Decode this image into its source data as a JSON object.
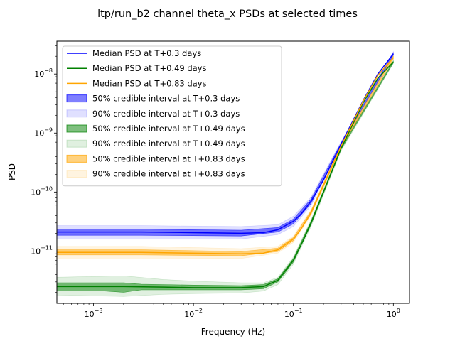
{
  "chart_data": {
    "type": "line",
    "title": "ltp/run_b2 channel theta_x PSDs at selected times",
    "xlabel": "Frequency (Hz)",
    "ylabel": "PSD",
    "xscale": "log",
    "yscale": "log",
    "xlim": [
      0.00043,
      1.45
    ],
    "ylim": [
      1.3e-12,
      3.6e-08
    ],
    "x_ticks": [
      {
        "value": 0.001,
        "base": "10",
        "exp": "−3"
      },
      {
        "value": 0.01,
        "base": "10",
        "exp": "−2"
      },
      {
        "value": 0.1,
        "base": "10",
        "exp": "−1"
      },
      {
        "value": 1,
        "base": "10",
        "exp": "0"
      }
    ],
    "y_ticks": [
      {
        "value": 1e-11,
        "base": "10",
        "exp": "−11"
      },
      {
        "value": 1e-10,
        "base": "10",
        "exp": "−10"
      },
      {
        "value": 1e-09,
        "base": "10",
        "exp": "−9"
      },
      {
        "value": 1e-08,
        "base": "10",
        "exp": "−8"
      }
    ],
    "grid": false,
    "legend_position": "upper-left",
    "series": [
      {
        "name": "Median PSD at T+0.3 days",
        "color": "#0000ff",
        "x": [
          0.00043,
          0.001,
          0.003,
          0.01,
          0.03,
          0.05,
          0.07,
          0.1,
          0.12,
          0.15,
          0.2,
          0.3,
          0.5,
          0.7,
          1.0
        ],
        "y": [
          2.1e-11,
          2.1e-11,
          2.1e-11,
          2.05e-11,
          2e-11,
          2.05e-11,
          2.3e-11,
          3.2e-11,
          4.3e-11,
          7e-11,
          1.6e-10,
          6.5e-10,
          3.6e-09,
          1e-08,
          2.2e-08
        ]
      },
      {
        "name": "Median PSD at T+0.49 days",
        "color": "#008000",
        "x": [
          0.00043,
          0.001,
          0.002,
          0.005,
          0.01,
          0.03,
          0.05,
          0.07,
          0.1,
          0.12,
          0.15,
          0.2,
          0.3,
          0.5,
          0.7,
          1.0
        ],
        "y": [
          2.5e-12,
          2.5e-12,
          2.5e-12,
          2.45e-12,
          2.4e-12,
          2.4e-12,
          2.5e-12,
          3.2e-12,
          7e-12,
          1.3e-11,
          3e-11,
          1e-10,
          5.5e-10,
          3.3e-09,
          8.5e-09,
          1.6e-08
        ]
      },
      {
        "name": "Median PSD at T+0.83 days",
        "color": "#ffa500",
        "x": [
          0.00043,
          0.001,
          0.003,
          0.01,
          0.03,
          0.05,
          0.07,
          0.1,
          0.12,
          0.15,
          0.2,
          0.3,
          0.5,
          0.7,
          1.0
        ],
        "y": [
          9.5e-12,
          9.5e-12,
          9.5e-12,
          9.2e-12,
          9e-12,
          9.2e-12,
          1.05e-11,
          1.6e-11,
          2.4e-11,
          4.5e-11,
          1.3e-10,
          6e-10,
          3.5e-09,
          9.5e-09,
          1.9e-08
        ]
      }
    ],
    "bands": [
      {
        "name": "50% credible interval at T+0.3 days",
        "color": "#0000ff",
        "opacity": 0.5,
        "x": [
          0.00043,
          0.003,
          0.03,
          0.07,
          0.1,
          0.15,
          0.3,
          1.0
        ],
        "lower": [
          1.85e-11,
          1.85e-11,
          1.8e-11,
          2.1e-11,
          2.9e-11,
          6.4e-11,
          6.2e-10,
          2.1e-08
        ],
        "upper": [
          2.35e-11,
          2.35e-11,
          2.25e-11,
          2.5e-11,
          3.5e-11,
          7.6e-11,
          6.8e-10,
          2.3e-08
        ]
      },
      {
        "name": "90% credible interval at T+0.3 days",
        "color": "#0000ff",
        "opacity": 0.12,
        "x": [
          0.00043,
          0.003,
          0.03,
          0.07,
          0.1,
          0.15,
          0.3,
          1.0
        ],
        "lower": [
          1.6e-11,
          1.6e-11,
          1.6e-11,
          1.9e-11,
          2.6e-11,
          5.9e-11,
          5.8e-10,
          2e-08
        ],
        "upper": [
          2.7e-11,
          2.7e-11,
          2.6e-11,
          2.8e-11,
          3.9e-11,
          8.2e-11,
          7.2e-10,
          2.4e-08
        ]
      },
      {
        "name": "50% credible interval at T+0.49 days",
        "color": "#008000",
        "opacity": 0.5,
        "x": [
          0.00043,
          0.0013,
          0.002,
          0.003,
          0.01,
          0.03,
          0.05,
          0.07,
          0.1,
          0.15,
          0.3,
          1.0
        ],
        "lower": [
          2.1e-12,
          2.1e-12,
          2e-12,
          2.2e-12,
          2.2e-12,
          2.2e-12,
          2.3e-12,
          3e-12,
          6.5e-12,
          2.8e-11,
          5.3e-10,
          1.55e-08
        ],
        "upper": [
          2.9e-12,
          2.9e-12,
          2.9e-12,
          2.75e-12,
          2.65e-12,
          2.6e-12,
          2.7e-12,
          3.4e-12,
          7.5e-12,
          3.2e-11,
          5.7e-10,
          1.65e-08
        ]
      },
      {
        "name": "90% credible interval at T+0.49 days",
        "color": "#008000",
        "opacity": 0.12,
        "x": [
          0.00043,
          0.002,
          0.005,
          0.01,
          0.03,
          0.05,
          0.07,
          0.1,
          0.15,
          0.3,
          1.0
        ],
        "lower": [
          1.8e-12,
          1.7e-12,
          1.85e-12,
          1.9e-12,
          1.95e-12,
          2.1e-12,
          2.7e-12,
          6e-12,
          2.6e-11,
          5e-10,
          1.5e-08
        ],
        "upper": [
          3.6e-12,
          3.8e-12,
          3.3e-12,
          3.1e-12,
          2.9e-12,
          2.9e-12,
          3.6e-12,
          8e-12,
          3.4e-11,
          6e-10,
          1.7e-08
        ]
      },
      {
        "name": "50% credible interval at T+0.83 days",
        "color": "#ffa500",
        "opacity": 0.5,
        "x": [
          0.00043,
          0.003,
          0.03,
          0.07,
          0.1,
          0.15,
          0.3,
          1.0
        ],
        "lower": [
          8.6e-12,
          8.6e-12,
          8.3e-12,
          9.8e-12,
          1.5e-11,
          4.2e-11,
          5.7e-10,
          1.8e-08
        ],
        "upper": [
          1.05e-11,
          1.05e-11,
          9.8e-12,
          1.12e-11,
          1.7e-11,
          4.8e-11,
          6.3e-10,
          2e-08
        ]
      },
      {
        "name": "90% credible interval at T+0.83 days",
        "color": "#ffa500",
        "opacity": 0.12,
        "x": [
          0.00043,
          0.003,
          0.03,
          0.07,
          0.1,
          0.15,
          0.3,
          1.0
        ],
        "lower": [
          7.6e-12,
          7.6e-12,
          7.5e-12,
          9.2e-12,
          1.4e-11,
          4e-11,
          5.5e-10,
          1.75e-08
        ],
        "upper": [
          1.2e-11,
          1.2e-11,
          1.1e-11,
          1.2e-11,
          1.8e-11,
          5e-11,
          6.5e-10,
          2.05e-08
        ]
      }
    ]
  }
}
